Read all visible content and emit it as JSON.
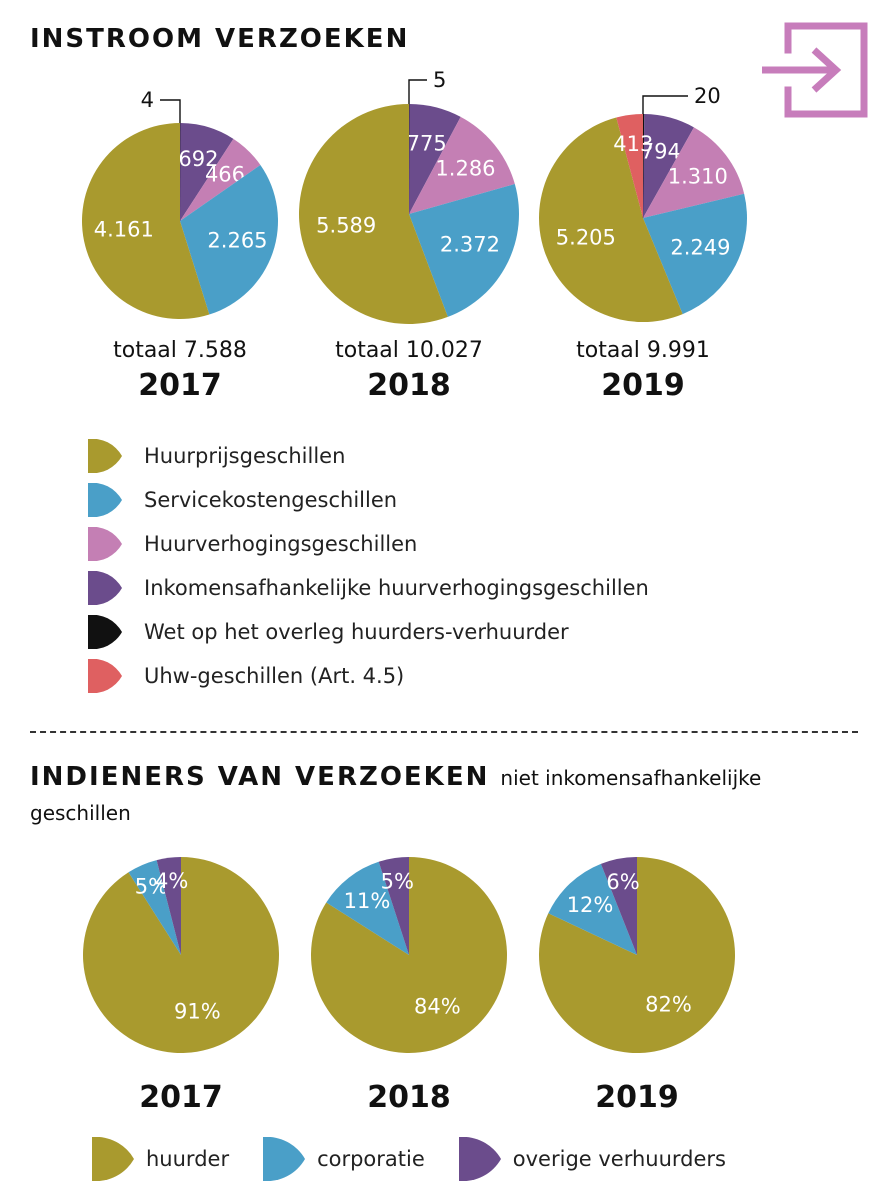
{
  "sections": {
    "inflow_title": "INSTROOM VERZOEKEN",
    "applicants_title": "INDIENERS VAN VERZOEKEN",
    "applicants_subtitle": "niet inkomensafhankelijke geschillen"
  },
  "icons": {
    "corner": "exit-door-icon",
    "corner_color": "#c77dbb"
  },
  "colors": {
    "huurprijs": "#a99a2e",
    "servicekosten": "#4a9fc8",
    "huurverhoging": "#c47fb4",
    "inkomen": "#6b4c8c",
    "wet": "#111111",
    "uhw": "#df6061",
    "huurder": "#a99a2e",
    "corporatie": "#4a9fc8",
    "overige": "#6b4c8c"
  },
  "legend_top": [
    {
      "key": "huurprijs",
      "label": "Huurprijsgeschillen"
    },
    {
      "key": "servicekosten",
      "label": "Servicekostengeschillen"
    },
    {
      "key": "huurverhoging",
      "label": "Huurverhogingsgeschillen"
    },
    {
      "key": "inkomen",
      "label": "Inkomensafhankelijke huurverhogingsgeschillen"
    },
    {
      "key": "wet",
      "label": "Wet op het overleg huurders-verhuurder"
    },
    {
      "key": "uhw",
      "label": "Uhw-geschillen (Art. 4.5)"
    }
  ],
  "legend_bottom": [
    {
      "key": "huurder",
      "label": "huurder"
    },
    {
      "key": "corporatie",
      "label": "corporatie"
    },
    {
      "key": "overige",
      "label": "overige verhuurders"
    }
  ],
  "chart_data": [
    {
      "type": "pie",
      "year": "2017",
      "total_label": "totaal 7.588",
      "slices": [
        {
          "key": "wet",
          "value": 4,
          "label": "4"
        },
        {
          "key": "inkomen",
          "value": 692,
          "label": "692"
        },
        {
          "key": "huurverhoging",
          "value": 466,
          "label": "466"
        },
        {
          "key": "servicekosten",
          "value": 2265,
          "label": "2.265"
        },
        {
          "key": "huurprijs",
          "value": 4161,
          "label": "4.161"
        }
      ]
    },
    {
      "type": "pie",
      "year": "2018",
      "total_label": "totaal 10.027",
      "slices": [
        {
          "key": "wet",
          "value": 5,
          "label": "5"
        },
        {
          "key": "inkomen",
          "value": 775,
          "label": "775"
        },
        {
          "key": "huurverhoging",
          "value": 1286,
          "label": "1.286"
        },
        {
          "key": "servicekosten",
          "value": 2372,
          "label": "2.372"
        },
        {
          "key": "huurprijs",
          "value": 5589,
          "label": "5.589"
        }
      ]
    },
    {
      "type": "pie",
      "year": "2019",
      "total_label": "totaal 9.991",
      "slices": [
        {
          "key": "wet",
          "value": 20,
          "label": "20"
        },
        {
          "key": "inkomen",
          "value": 794,
          "label": "794"
        },
        {
          "key": "huurverhoging",
          "value": 1310,
          "label": "1.310"
        },
        {
          "key": "servicekosten",
          "value": 2249,
          "label": "2.249"
        },
        {
          "key": "huurprijs",
          "value": 5205,
          "label": "5.205"
        },
        {
          "key": "uhw",
          "value": 413,
          "label": "413"
        }
      ]
    },
    {
      "type": "pie",
      "year": "2017",
      "slices": [
        {
          "key": "huurder",
          "value": 91,
          "label": "91%"
        },
        {
          "key": "corporatie",
          "value": 5,
          "label": "5%"
        },
        {
          "key": "overige",
          "value": 4,
          "label": "4%"
        }
      ]
    },
    {
      "type": "pie",
      "year": "2018",
      "slices": [
        {
          "key": "huurder",
          "value": 84,
          "label": "84%"
        },
        {
          "key": "corporatie",
          "value": 11,
          "label": "11%"
        },
        {
          "key": "overige",
          "value": 5,
          "label": "5%"
        }
      ]
    },
    {
      "type": "pie",
      "year": "2019",
      "slices": [
        {
          "key": "huurder",
          "value": 82,
          "label": "82%"
        },
        {
          "key": "corporatie",
          "value": 12,
          "label": "12%"
        },
        {
          "key": "overige",
          "value": 6,
          "label": "6%"
        }
      ]
    }
  ]
}
